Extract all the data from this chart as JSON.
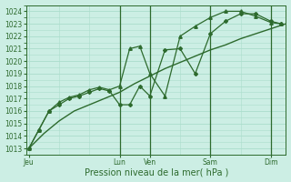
{
  "bg_color": "#cceee4",
  "grid_color": "#aaddcc",
  "line_color": "#2d6a2d",
  "ylim": [
    1012.5,
    1024.5
  ],
  "yticks": [
    1013,
    1014,
    1015,
    1016,
    1017,
    1018,
    1019,
    1020,
    1021,
    1022,
    1023,
    1024
  ],
  "xlabel": "Pression niveau de la mer( hPa )",
  "xtick_labels": [
    "Jeu",
    "Lun",
    "Ven",
    "Sam",
    "Dim"
  ],
  "xtick_positions": [
    0,
    18,
    24,
    36,
    48
  ],
  "xlim": [
    -0.5,
    51
  ],
  "vline_positions": [
    18,
    24,
    36,
    48
  ],
  "line1_smooth": {
    "x": [
      0,
      3,
      6,
      9,
      12,
      15,
      18,
      21,
      24,
      27,
      30,
      33,
      36,
      39,
      42,
      45,
      48,
      51
    ],
    "y": [
      1013.0,
      1014.2,
      1015.2,
      1016.0,
      1016.5,
      1017.0,
      1017.5,
      1018.2,
      1018.8,
      1019.4,
      1019.9,
      1020.4,
      1020.9,
      1021.3,
      1021.8,
      1022.2,
      1022.6,
      1023.0
    ],
    "lw": 1.0
  },
  "line2_detail": {
    "x": [
      0,
      2,
      4,
      6,
      8,
      10,
      12,
      14,
      16,
      18,
      20,
      22,
      24,
      27,
      30,
      33,
      36,
      39,
      42,
      45,
      48,
      50
    ],
    "y": [
      1013.0,
      1014.5,
      1016.0,
      1016.5,
      1017.0,
      1017.2,
      1017.5,
      1017.8,
      1017.6,
      1016.5,
      1016.5,
      1018.0,
      1017.2,
      1020.9,
      1021.0,
      1019.0,
      1022.2,
      1023.2,
      1023.8,
      1023.8,
      1023.2,
      1023.0
    ],
    "marker": "D",
    "markersize": 2.0,
    "lw": 0.9
  },
  "line3_detail": {
    "x": [
      0,
      2,
      4,
      6,
      8,
      10,
      12,
      14,
      16,
      18,
      20,
      22,
      24,
      27,
      30,
      33,
      36,
      39,
      42,
      45,
      48,
      50
    ],
    "y": [
      1013.0,
      1014.5,
      1016.0,
      1016.7,
      1017.1,
      1017.3,
      1017.7,
      1017.9,
      1017.7,
      1018.0,
      1021.0,
      1021.2,
      1019.0,
      1017.2,
      1022.0,
      1022.8,
      1023.5,
      1024.0,
      1024.0,
      1023.6,
      1023.1,
      1023.0
    ],
    "marker": "^",
    "markersize": 2.5,
    "lw": 0.9
  },
  "tick_fontsize": 5.5,
  "xlabel_fontsize": 7.0
}
